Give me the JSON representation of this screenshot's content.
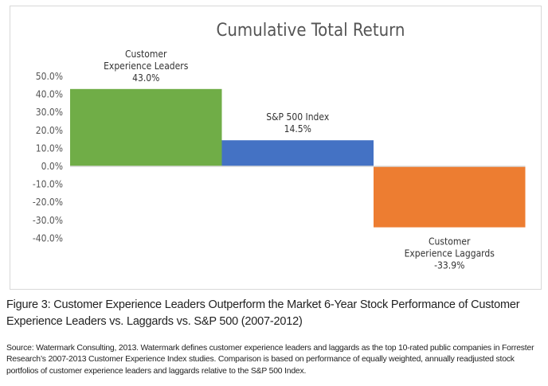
{
  "chart_data": {
    "type": "bar",
    "title": "Cumulative Total Return",
    "categories": [
      "Customer Experience Leaders",
      "S&P 500 Index",
      "Customer Experience Laggards"
    ],
    "label_lines": [
      [
        "Customer",
        "Experience Leaders"
      ],
      [
        "S&P 500 Index"
      ],
      [
        "Customer",
        "Experience Laggards"
      ]
    ],
    "values": [
      43.0,
      14.5,
      -33.9
    ],
    "value_labels": [
      "43.0%",
      "14.5%",
      "-33.9%"
    ],
    "colors": [
      "#70ad47",
      "#4472c4",
      "#ed7d31"
    ],
    "yticks": [
      50,
      40,
      30,
      20,
      10,
      0,
      -10,
      -20,
      -30,
      -40
    ],
    "ytick_labels": [
      "50.0%",
      "40.0%",
      "30.0%",
      "20.0%",
      "10.0%",
      "0.0%",
      "-10.0%",
      "-20.0%",
      "-30.0%",
      "-40.0%"
    ],
    "ylim": [
      -40,
      50
    ],
    "xlabel": "",
    "ylabel": "",
    "grid": false
  },
  "caption": "Figure 3: Customer Experience Leaders Outperform the Market 6-Year Stock Performance of Customer Experience Leaders vs. Laggards vs. S&P 500 (2007-2012)",
  "source": "Source: Watermark Consulting, 2013. Watermark defines customer experience leaders and laggards as the top 10-rated public companies in Forrester Research’s 2007-2013 Customer Experience Index studies. Comparison is based on performance of equally weighted, annually readjusted stock portfolios of customer experience leaders and laggards relative to the S&P 500 Index."
}
